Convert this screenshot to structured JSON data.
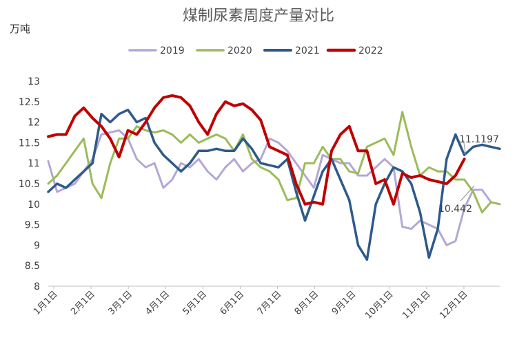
{
  "chart_data": {
    "type": "line",
    "title": "煤制尿素周度产量对比",
    "ylabel": "万吨",
    "xlabel": "",
    "ylim": [
      8,
      13
    ],
    "yticks": [
      "8",
      "8.5",
      "9",
      "9.5",
      "10",
      "10.5",
      "11",
      "11.5",
      "12",
      "12.5",
      "13"
    ],
    "xticks": [
      "1月1日",
      "2月1日",
      "3月1日",
      "4月1日",
      "5月1日",
      "6月1日",
      "7月1日",
      "8月1日",
      "9月1日",
      "10月1日",
      "11月1日",
      "12月1日"
    ],
    "legend_position": "top",
    "grid": "none",
    "series": [
      {
        "name": "2019",
        "color": "#b4a7d6",
        "width": 3,
        "x": [
          1,
          2,
          3,
          4,
          5,
          6,
          7,
          8,
          9,
          10,
          11,
          12,
          13,
          14,
          15,
          16,
          17,
          18,
          19,
          20,
          21,
          22,
          23,
          24,
          25,
          26,
          27,
          28,
          29,
          30,
          31,
          32,
          33,
          34,
          35,
          36,
          37,
          38,
          39,
          40,
          41,
          42,
          43,
          44,
          45,
          46,
          47,
          48,
          49,
          50,
          51,
          52
        ],
        "values": [
          11.05,
          10.3,
          10.4,
          10.5,
          10.8,
          11.1,
          11.7,
          11.75,
          11.8,
          11.6,
          11.1,
          10.9,
          11.0,
          10.4,
          10.6,
          11.0,
          10.9,
          11.1,
          10.8,
          10.6,
          10.9,
          11.1,
          10.8,
          11.0,
          11.1,
          11.6,
          11.5,
          11.3,
          11.0,
          10.7,
          10.4,
          11.2,
          11.1,
          11.0,
          11.0,
          10.7,
          10.7,
          10.9,
          11.1,
          10.9,
          9.45,
          9.4,
          9.6,
          9.5,
          9.4,
          9.0,
          9.1,
          9.9,
          10.35,
          10.35,
          10.05,
          10.0
        ]
      },
      {
        "name": "2020",
        "color": "#9bbb59",
        "width": 3,
        "x": [
          1,
          2,
          3,
          4,
          5,
          6,
          7,
          8,
          9,
          10,
          11,
          12,
          13,
          14,
          15,
          16,
          17,
          18,
          19,
          20,
          21,
          22,
          23,
          24,
          25,
          26,
          27,
          28,
          29,
          30,
          31,
          32,
          33,
          34,
          35,
          36,
          37,
          38,
          39,
          40,
          41,
          42,
          43,
          44,
          45,
          46,
          47,
          48,
          49,
          50,
          51,
          52
        ],
        "values": [
          10.5,
          10.7,
          11.0,
          11.3,
          11.6,
          10.5,
          10.15,
          11.0,
          11.6,
          11.6,
          11.9,
          11.8,
          11.75,
          11.8,
          11.7,
          11.5,
          11.7,
          11.5,
          11.6,
          11.7,
          11.6,
          11.3,
          11.7,
          11.1,
          10.9,
          10.8,
          10.6,
          10.1,
          10.15,
          11.0,
          11.0,
          11.4,
          11.1,
          11.1,
          10.8,
          10.75,
          11.4,
          11.5,
          11.6,
          11.2,
          12.25,
          11.4,
          10.7,
          10.9,
          10.8,
          10.8,
          10.6,
          10.6,
          10.3,
          9.8,
          10.05,
          10.0
        ]
      },
      {
        "name": "2021",
        "color": "#2e5a8a",
        "width": 3.5,
        "x": [
          1,
          2,
          3,
          4,
          5,
          6,
          7,
          8,
          9,
          10,
          11,
          12,
          13,
          14,
          15,
          16,
          17,
          18,
          19,
          20,
          21,
          22,
          23,
          24,
          25,
          26,
          27,
          28,
          29,
          30,
          31,
          32,
          33,
          34,
          35,
          36,
          37,
          38,
          39,
          40,
          41,
          42,
          43,
          44,
          45,
          46,
          47,
          48,
          49,
          50,
          51,
          52
        ],
        "values": [
          10.3,
          10.5,
          10.4,
          10.6,
          10.8,
          11.0,
          12.2,
          12.0,
          12.2,
          12.3,
          12.0,
          12.1,
          11.5,
          11.2,
          11.0,
          10.8,
          11.0,
          11.3,
          11.3,
          11.35,
          11.3,
          11.3,
          11.6,
          11.35,
          11.0,
          10.95,
          10.9,
          11.1,
          10.3,
          9.6,
          10.2,
          10.8,
          11.1,
          10.6,
          10.1,
          9.0,
          8.65,
          10.0,
          10.5,
          10.9,
          10.8,
          10.5,
          9.8,
          8.7,
          9.4,
          11.1,
          11.7,
          11.2,
          11.4,
          11.45,
          11.4,
          11.35
        ]
      },
      {
        "name": "2022",
        "color": "#c00000",
        "width": 4,
        "x": [
          1,
          2,
          3,
          4,
          5,
          6,
          7,
          8,
          9,
          10,
          11,
          12,
          13,
          14,
          15,
          16,
          17,
          18,
          19,
          20,
          21,
          22,
          23,
          24,
          25,
          26,
          27,
          28,
          29,
          30,
          31,
          32,
          33,
          34,
          35,
          36,
          37,
          38,
          39,
          40,
          41,
          42,
          43,
          44,
          45,
          46,
          47,
          48
        ],
        "values": [
          11.65,
          11.7,
          11.7,
          12.15,
          12.35,
          12.1,
          11.9,
          11.6,
          11.15,
          11.8,
          11.7,
          12.0,
          12.35,
          12.6,
          12.65,
          12.6,
          12.4,
          12.0,
          11.7,
          12.2,
          12.5,
          12.4,
          12.45,
          12.3,
          12.05,
          11.4,
          11.3,
          11.2,
          10.5,
          10.0,
          10.05,
          10.0,
          11.3,
          11.7,
          11.9,
          11.3,
          11.3,
          10.5,
          10.6,
          10.0,
          10.75,
          10.65,
          10.7,
          10.6,
          10.55,
          10.5,
          10.7,
          11.1
        ]
      }
    ],
    "annotations": [
      {
        "text": "11.1197",
        "x": 48,
        "y": 11.12
      },
      {
        "text": "10.442",
        "x": 51,
        "y": 10.44
      }
    ]
  }
}
